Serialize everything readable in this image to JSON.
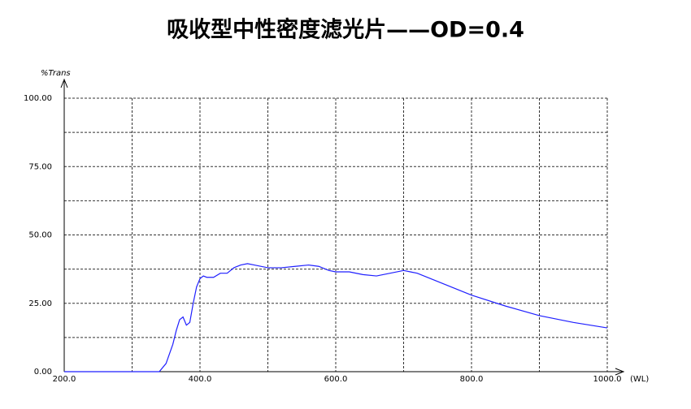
{
  "chart_data": {
    "type": "line",
    "title": "吸收型中性密度滤光片——OD=0.4",
    "xlabel": "(WL)",
    "ylabel": "%Trans",
    "x": [
      200,
      300,
      340,
      350,
      360,
      365,
      370,
      375,
      380,
      385,
      390,
      395,
      400,
      405,
      410,
      420,
      430,
      440,
      450,
      460,
      470,
      480,
      500,
      520,
      540,
      560,
      575,
      590,
      600,
      620,
      640,
      660,
      680,
      700,
      710,
      720,
      740,
      760,
      780,
      800,
      850,
      900,
      950,
      1000
    ],
    "series": [
      {
        "name": "%Trans",
        "color": "#1f1fff",
        "values": [
          0,
          0,
          0,
          3,
          10,
          15,
          19,
          20,
          17,
          18,
          25,
          31,
          34,
          35,
          34.5,
          34.5,
          36,
          36,
          38,
          39,
          39.5,
          39,
          38,
          38,
          38.5,
          39,
          38.5,
          37,
          36.5,
          36.5,
          35.5,
          35,
          36,
          37,
          36.5,
          36,
          34,
          32,
          30,
          28,
          24,
          20.5,
          18,
          16
        ]
      }
    ],
    "xlim": [
      200,
      1000
    ],
    "xticks": [
      {
        "value": 200,
        "label": "200.0"
      },
      {
        "value": 400,
        "label": "400.0"
      },
      {
        "value": 600,
        "label": "600.0"
      },
      {
        "value": 800,
        "label": "800.0"
      },
      {
        "value": 1000,
        "label": "1000.0"
      }
    ],
    "minor_xticks": [
      300,
      500,
      700,
      900
    ],
    "ylim": [
      0,
      100
    ],
    "yticks": [
      {
        "value": 0,
        "label": "0.00"
      },
      {
        "value": 25,
        "label": "25.00"
      },
      {
        "value": 50,
        "label": "50.00"
      },
      {
        "value": 75,
        "label": "75.00"
      },
      {
        "value": 100,
        "label": "100.00"
      }
    ],
    "minor_yticks": [
      12.5,
      37.5,
      62.5,
      87.5
    ],
    "grid": true
  }
}
